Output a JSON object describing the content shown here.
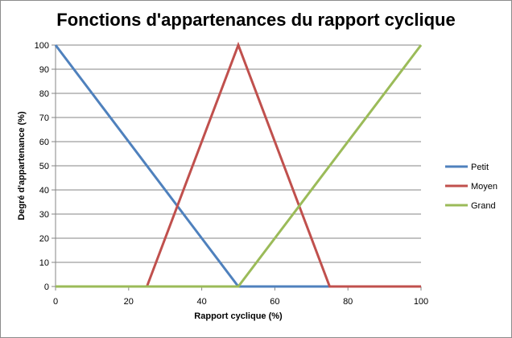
{
  "chart_data": {
    "type": "line",
    "title": "Fonctions d'appartenances du rapport cyclique",
    "xlabel": "Rapport cyclique  (%)",
    "ylabel": "Degré d'appartenance  (%)",
    "xlim": [
      0,
      100
    ],
    "ylim": [
      0,
      100
    ],
    "xticks": [
      0,
      20,
      40,
      60,
      80,
      100
    ],
    "yticks": [
      0,
      10,
      20,
      30,
      40,
      50,
      60,
      70,
      80,
      90,
      100
    ],
    "grid": "horizontal",
    "legend_position": "right",
    "series": [
      {
        "name": "Petit",
        "color": "#4f81bd",
        "points": [
          [
            0,
            100
          ],
          [
            50,
            0
          ],
          [
            100,
            0
          ]
        ]
      },
      {
        "name": "Moyen",
        "color": "#c0504d",
        "points": [
          [
            0,
            0
          ],
          [
            25,
            0
          ],
          [
            50,
            100
          ],
          [
            75,
            0
          ],
          [
            100,
            0
          ]
        ]
      },
      {
        "name": "Grand",
        "color": "#9bbb59",
        "points": [
          [
            0,
            0
          ],
          [
            50,
            0
          ],
          [
            100,
            100
          ]
        ]
      }
    ]
  }
}
